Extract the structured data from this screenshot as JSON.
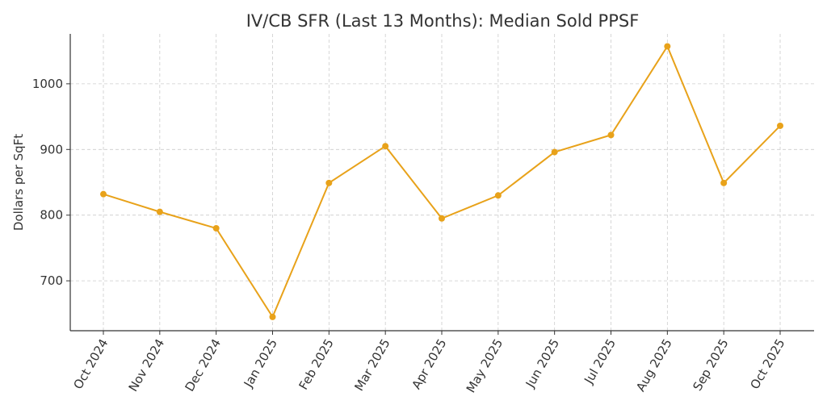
{
  "chart_data": {
    "type": "line",
    "title": "IV/CB SFR (Last 13 Months): Median Sold PPSF",
    "xlabel": "",
    "ylabel": "Dollars per SqFt",
    "categories": [
      "Oct 2024",
      "Nov 2024",
      "Dec 2024",
      "Jan 2025",
      "Feb 2025",
      "Mar 2025",
      "Apr 2025",
      "May 2025",
      "Jun 2025",
      "Jul 2025",
      "Aug 2025",
      "Sep 2025",
      "Oct 2025"
    ],
    "series": [
      {
        "name": "Median Sold PPSF",
        "values": [
          832,
          805,
          780,
          645,
          849,
          905,
          795,
          830,
          896,
          922,
          1057,
          849,
          936
        ]
      }
    ],
    "ylim": [
      624,
      1076
    ],
    "yticks": [
      700,
      800,
      900,
      1000
    ],
    "grid": true,
    "legend": "none",
    "color": "#e8a21a"
  }
}
